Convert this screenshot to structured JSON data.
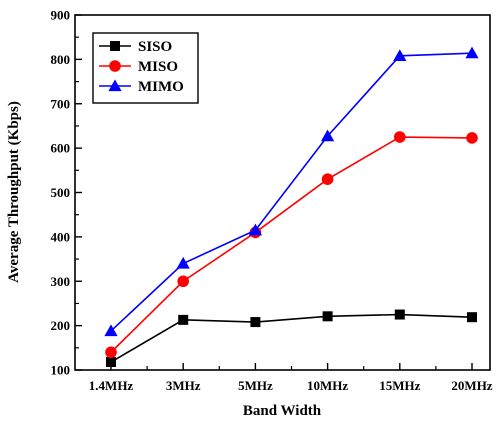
{
  "chart_data": {
    "type": "line",
    "title": "",
    "xlabel": "Band Width",
    "ylabel": "Average Throughput (Kbps)",
    "categories": [
      "1.4MHz",
      "3MHz",
      "5MHz",
      "10MHz",
      "15MHz",
      "20MHz"
    ],
    "ylim": [
      100,
      900
    ],
    "yticks": [
      100,
      200,
      300,
      400,
      500,
      600,
      700,
      800,
      900
    ],
    "grid": false,
    "legend_position": "top-left",
    "series": [
      {
        "name": "SISO",
        "color": "#000000",
        "marker": "square",
        "values": [
          118,
          213,
          208,
          221,
          225,
          219
        ]
      },
      {
        "name": "MISO",
        "color": "#ff0000",
        "marker": "circle",
        "values": [
          140,
          300,
          410,
          530,
          625,
          623
        ]
      },
      {
        "name": "MIMO",
        "color": "#0000ff",
        "marker": "triangle",
        "values": [
          188,
          340,
          415,
          627,
          808,
          814
        ]
      }
    ]
  }
}
